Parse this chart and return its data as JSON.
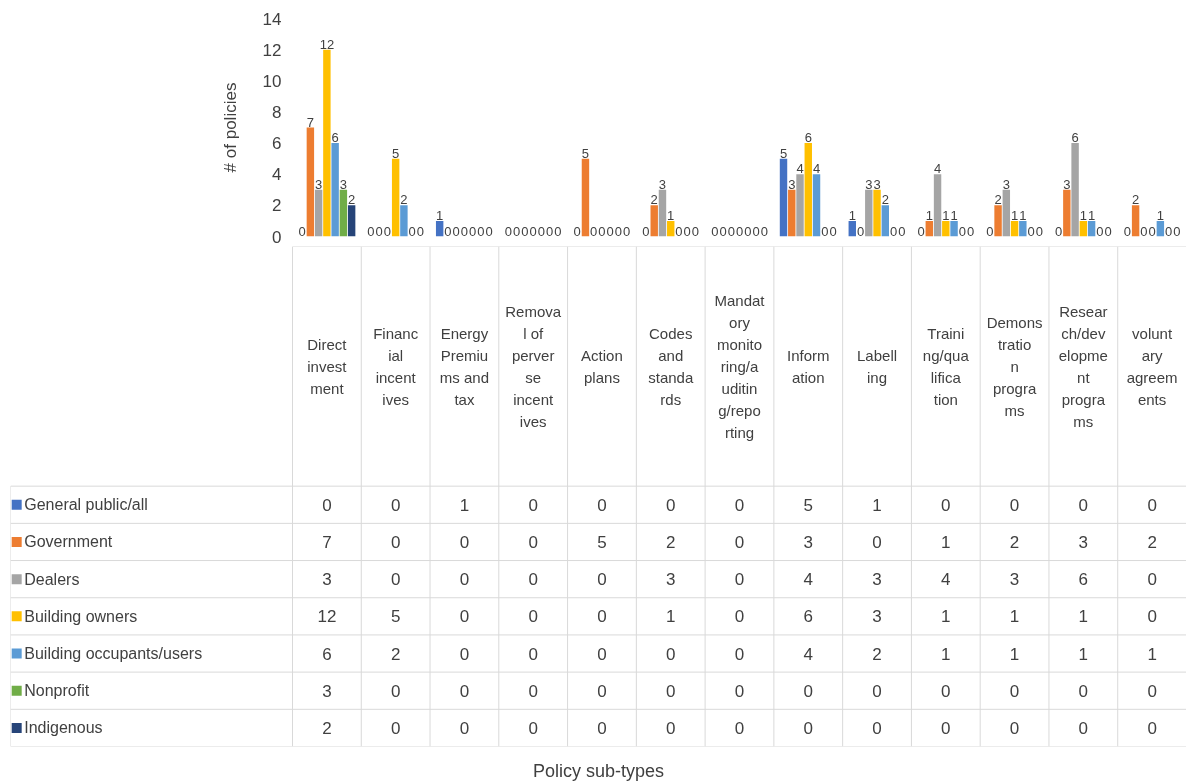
{
  "chart_data": {
    "type": "bar",
    "annotations": [
      "Policy sub-types"
    ],
    "ylabel": "# of policies",
    "categories": [
      "Direct investment",
      "Financial incentives",
      "Energy Premiums and tax",
      "Removal of perverse incentives",
      "Action plans",
      "Codes and standards",
      "Mandatory monitoring/auditing/reporting",
      "Information",
      "Labelling",
      "Training/qualification",
      "Demonstration programs",
      "Research/development programs",
      "voluntary agreements"
    ],
    "series": [
      {
        "name": "General public/all",
        "color": "#4472c4",
        "values": [
          0,
          0,
          1,
          0,
          0,
          0,
          0,
          5,
          1,
          0,
          0,
          0,
          0
        ],
        "value_labels": [
          "0",
          "0",
          "1",
          "0",
          "0",
          "0",
          "0",
          "5",
          "1",
          "0",
          "0",
          "0",
          "0"
        ]
      },
      {
        "name": "Government",
        "color": "#ed7d31",
        "values": [
          7,
          0,
          0,
          0,
          5,
          2,
          0,
          3,
          0,
          1,
          2,
          3,
          2
        ],
        "value_labels": [
          "7",
          "0",
          "0",
          "0",
          "5",
          "2",
          "0",
          "3",
          "0",
          "1",
          "2",
          "3",
          "2"
        ]
      },
      {
        "name": "Dealers",
        "color": "#a5a5a5",
        "values": [
          3,
          0,
          0,
          0,
          0,
          3,
          0,
          4,
          3,
          4,
          3,
          6,
          0
        ],
        "value_labels": [
          "3",
          "0",
          "0",
          "0",
          "0",
          "3",
          "0",
          "4",
          "3",
          "4",
          "3",
          "6",
          "0"
        ]
      },
      {
        "name": "Building owners",
        "color": "#ffc000",
        "values": [
          12,
          5,
          0,
          0,
          0,
          1,
          0,
          6,
          3,
          1,
          1,
          1,
          0
        ],
        "value_labels": [
          "12",
          "5",
          "0",
          "0",
          "0",
          "1",
          "0",
          "6",
          "3",
          "1",
          "1",
          "1",
          "0"
        ]
      },
      {
        "name": "Building occupants/users",
        "color": "#5b9bd5",
        "values": [
          6,
          2,
          0,
          0,
          0,
          0,
          0,
          4,
          2,
          1,
          1,
          1,
          1
        ],
        "value_labels": [
          "6",
          "2",
          "0",
          "0",
          "0",
          "0",
          "0",
          "4",
          "2",
          "1",
          "1",
          "1",
          "1"
        ]
      },
      {
        "name": "Nonprofit",
        "color": "#70ad47",
        "values": [
          3,
          0,
          0,
          0,
          0,
          0,
          0,
          0,
          0,
          0,
          0,
          0,
          0
        ],
        "value_labels": [
          "3",
          "0",
          "0",
          "0",
          "0",
          "0",
          "0",
          "0",
          "0",
          "0",
          "0",
          "0",
          "0"
        ]
      },
      {
        "name": "Indigenous",
        "color": "#264478",
        "values": [
          2,
          0,
          0,
          0,
          0,
          0,
          0,
          0,
          0,
          0,
          0,
          0,
          0
        ],
        "value_labels": [
          "2",
          "0",
          "0",
          "0",
          "0",
          "0",
          "0",
          "0",
          "0",
          "0",
          "0",
          "0",
          "0"
        ]
      }
    ],
    "ylim": [
      0,
      14
    ],
    "yticks": [
      0,
      2,
      4,
      6,
      8,
      10,
      12,
      14
    ],
    "data_labels": true,
    "legend": "bottom left"
  }
}
